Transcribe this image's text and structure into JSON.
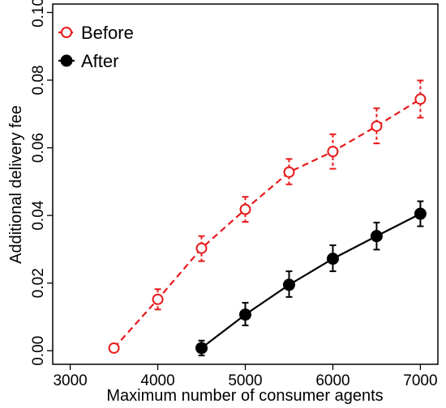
{
  "chart_data": {
    "type": "line",
    "title": "",
    "xlabel": "Maximum number of consumer agents",
    "ylabel": "Additional delivery fee",
    "xlim": [
      2800,
      7200
    ],
    "ylim": [
      -0.004,
      0.1025
    ],
    "xticks": [
      3000,
      4000,
      5000,
      6000,
      7000
    ],
    "xtick_labels": [
      "3000",
      "4000",
      "5000",
      "6000",
      "7000"
    ],
    "yticks": [
      0.0,
      0.02,
      0.04,
      0.06,
      0.08,
      0.1
    ],
    "ytick_labels": [
      "0.00",
      "0.02",
      "0.04",
      "0.06",
      "0.08",
      "0.10"
    ],
    "grid": false,
    "legend_position": "top-left",
    "series": [
      {
        "name": "Before",
        "color": "#e8191a",
        "line_style": "dashed",
        "marker": "open-circle",
        "x": [
          3500,
          4000,
          4500,
          5000,
          5500,
          6000,
          6500,
          7000
        ],
        "y": [
          0.0008,
          0.0152,
          0.0303,
          0.0418,
          0.0528,
          0.0589,
          0.0664,
          0.0744
        ],
        "err_low": [
          0.0003,
          0.003,
          0.0038,
          0.0037,
          0.0036,
          0.0051,
          0.0051,
          0.0055
        ],
        "err_high": [
          0.0003,
          0.003,
          0.0036,
          0.0037,
          0.0039,
          0.0051,
          0.0053,
          0.0055
        ]
      },
      {
        "name": "After",
        "color": "#000000",
        "line_style": "solid",
        "marker": "filled-circle",
        "x": [
          4500,
          5000,
          5500,
          6000,
          6500,
          7000
        ],
        "y": [
          0.0008,
          0.0107,
          0.0195,
          0.0272,
          0.0339,
          0.0405
        ],
        "err_low": [
          0.0022,
          0.0032,
          0.0036,
          0.0037,
          0.004,
          0.0037
        ],
        "err_high": [
          0.0022,
          0.0035,
          0.004,
          0.004,
          0.004,
          0.0037
        ]
      }
    ]
  }
}
